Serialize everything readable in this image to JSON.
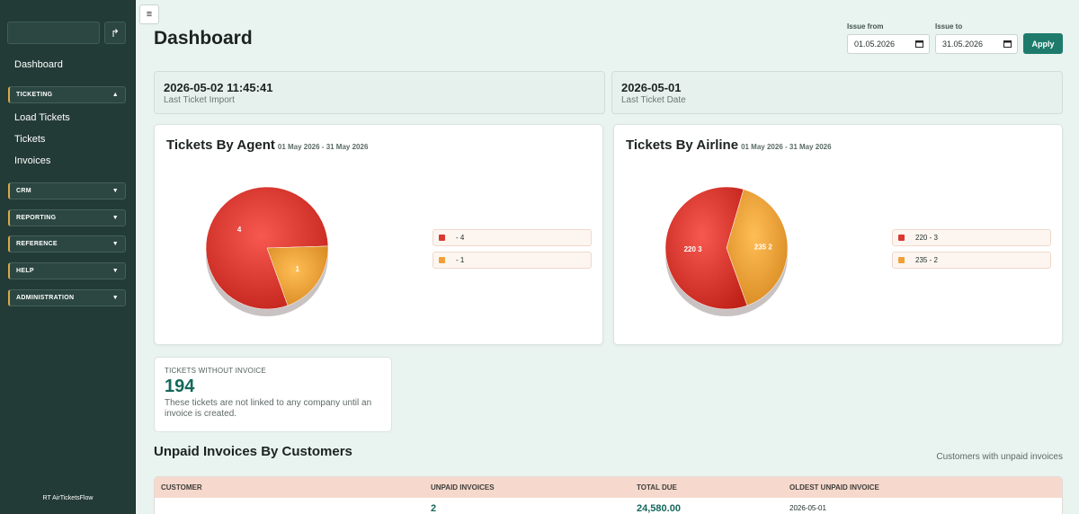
{
  "sidebar": {
    "search": {
      "placeholder": "",
      "value": ""
    },
    "go_icon": "logout-arrow-icon",
    "go_symbol": "↱",
    "dashboard_label": "Dashboard",
    "ticketing": {
      "label": "TICKETING",
      "items": [
        "Load Tickets",
        "Tickets",
        "Invoices"
      ]
    },
    "groups": [
      "CRM",
      "REPORTING",
      "REFERENCE",
      "HELP",
      "ADMINISTRATION"
    ],
    "footer": "RT AirTicketsFlow",
    "accent_color": "#d8a94a"
  },
  "header": {
    "menu_symbol": "≡",
    "title": "Dashboard",
    "filter": {
      "from_label": "Issue from",
      "from_value": "01.05.2026",
      "to_label": "Issue to",
      "to_value": "31.05.2026",
      "apply_label": "Apply"
    }
  },
  "stats": [
    {
      "value": "2026-05-02 11:45:41",
      "label": "Last Ticket Import"
    },
    {
      "value": "2026-05-01",
      "label": "Last Ticket Date"
    }
  ],
  "charts": [
    {
      "title": "Tickets By Agent",
      "range": "01 May 2026 - 31 May 2026",
      "chart_data": {
        "type": "pie",
        "title": "Tickets By Agent",
        "subtitle": "01 May 2026 - 31 May 2026",
        "slices": [
          {
            "label": "- 4",
            "value": 4,
            "data_label": "4",
            "color": "#d93a31"
          },
          {
            "label": "- 1",
            "value": 1,
            "data_label": "1",
            "color": "#f0a038"
          }
        ],
        "legend": "right"
      }
    },
    {
      "title": "Tickets By Airline",
      "range": "01 May 2026 - 31 May 2026",
      "chart_data": {
        "type": "pie",
        "title": "Tickets By Airline",
        "subtitle": "01 May 2026 - 31 May 2026",
        "slices": [
          {
            "label": "220 - 3",
            "value": 3,
            "data_label": "220 3",
            "color": "#d93a31"
          },
          {
            "label": "235 - 2",
            "value": 2,
            "data_label": "235 2",
            "color": "#f0a038"
          }
        ],
        "legend": "right"
      }
    }
  ],
  "tickets_without_invoice": {
    "heading": "TICKETS WITHOUT INVOICE",
    "count": "194",
    "description": "These tickets are not linked to any company until an invoice is created."
  },
  "unpaid": {
    "title": "Unpaid Invoices By Customers",
    "subtitle": "Customers with unpaid invoices",
    "columns": [
      "CUSTOMER",
      "UNPAID INVOICES",
      "TOTAL DUE",
      "OLDEST UNPAID INVOICE"
    ],
    "rows": [
      {
        "customer": "",
        "unpaid_invoices": "2",
        "total_due": "24,580.00",
        "oldest": "2026-05-01"
      }
    ]
  }
}
